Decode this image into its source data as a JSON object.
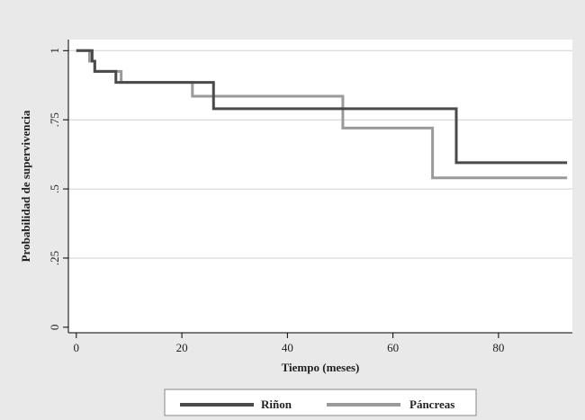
{
  "chart_data": {
    "type": "line",
    "step": true,
    "xlabel": "Tiempo (meses)",
    "ylabel": "Probabilidad de supervivencia",
    "xlim": [
      -1.5,
      94
    ],
    "ylim": [
      -0.02,
      1.04
    ],
    "xticks": [
      0,
      20,
      40,
      60,
      80
    ],
    "yticks": [
      0,
      0.25,
      0.5,
      0.75,
      1
    ],
    "xtick_labels": [
      "0",
      "20",
      "40",
      "60",
      "80"
    ],
    "ytick_labels": [
      "0",
      ".25",
      ".5",
      ".75",
      "1"
    ],
    "grid": "horizontal",
    "legend_position": "bottom",
    "series": [
      {
        "name": "Riñon",
        "color": "#4a4a4a",
        "x": [
          0,
          3,
          3.5,
          4,
          7.5,
          8,
          26,
          72,
          93
        ],
        "y": [
          1.0,
          0.962,
          0.925,
          0.925,
          0.885,
          0.885,
          0.79,
          0.595,
          0.595
        ]
      },
      {
        "name": "Páncreas",
        "color": "#9a9a9a",
        "x": [
          0,
          2.5,
          3.5,
          8.5,
          22,
          50.5,
          67.5,
          93
        ],
        "y": [
          1.0,
          0.962,
          0.925,
          0.885,
          0.835,
          0.72,
          0.54,
          0.54
        ]
      }
    ]
  }
}
